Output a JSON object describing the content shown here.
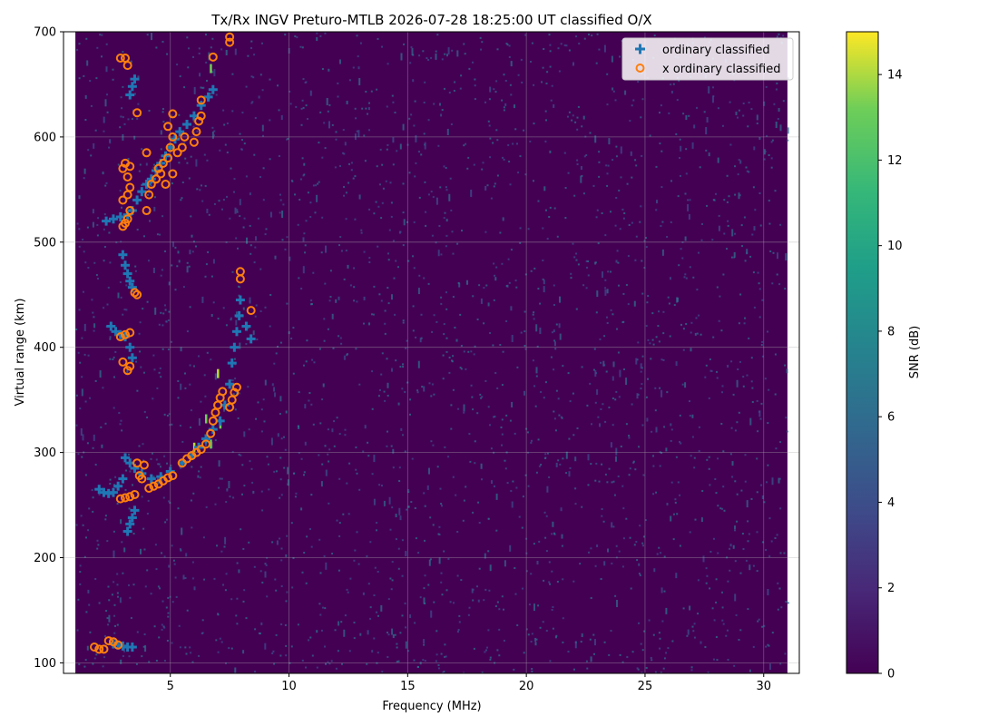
{
  "chart_data": {
    "type": "scatter",
    "title": "Tx/Rx INGV Preturo-MTLB 2026-07-28 18:25:00  UT classified O/X",
    "xlabel": "Frequency (MHz)",
    "ylabel": "Virtual range (km)",
    "xlim": [
      0.5,
      31.5
    ],
    "ylim": [
      90,
      700
    ],
    "x_data_extent": [
      1.0,
      31.0
    ],
    "x_ticks": [
      "5",
      "10",
      "15",
      "20",
      "25",
      "30"
    ],
    "x_tick_values": [
      5,
      10,
      15,
      20,
      25,
      30
    ],
    "y_ticks": [
      "100",
      "200",
      "300",
      "400",
      "500",
      "600",
      "700"
    ],
    "y_tick_values": [
      100,
      200,
      300,
      400,
      500,
      600,
      700
    ],
    "grid": true,
    "legend_position": "top-right",
    "background_color": "#440154",
    "colorbar": {
      "label": "SNR (dB)",
      "range": [
        0,
        15
      ],
      "ticks": [
        "0",
        "2",
        "4",
        "6",
        "8",
        "10",
        "12",
        "14"
      ],
      "tick_values": [
        0,
        2,
        4,
        6,
        8,
        10,
        12,
        14
      ],
      "colormap": "viridis"
    },
    "series": [
      {
        "name": "ordinary classified",
        "marker": "plus",
        "color": "#1f77b4",
        "points": [
          [
            2.0,
            265
          ],
          [
            2.2,
            262
          ],
          [
            2.4,
            261
          ],
          [
            2.6,
            262
          ],
          [
            2.8,
            268
          ],
          [
            3.0,
            275
          ],
          [
            3.1,
            295
          ],
          [
            3.3,
            290
          ],
          [
            3.5,
            285
          ],
          [
            3.8,
            280
          ],
          [
            4.2,
            275
          ],
          [
            4.6,
            277
          ],
          [
            5.0,
            282
          ],
          [
            5.5,
            290
          ],
          [
            5.9,
            297
          ],
          [
            6.2,
            305
          ],
          [
            6.5,
            313
          ],
          [
            6.8,
            322
          ],
          [
            7.1,
            330
          ],
          [
            7.3,
            345
          ],
          [
            7.5,
            365
          ],
          [
            7.6,
            385
          ],
          [
            7.7,
            400
          ],
          [
            7.8,
            415
          ],
          [
            7.9,
            430
          ],
          [
            7.95,
            445
          ],
          [
            8.2,
            420
          ],
          [
            8.4,
            408
          ],
          [
            3.2,
            225
          ],
          [
            3.3,
            232
          ],
          [
            3.4,
            238
          ],
          [
            3.5,
            245
          ],
          [
            2.5,
            420
          ],
          [
            2.7,
            415
          ],
          [
            2.9,
            412
          ],
          [
            3.1,
            410
          ],
          [
            3.3,
            400
          ],
          [
            3.4,
            390
          ],
          [
            3.0,
            488
          ],
          [
            3.1,
            478
          ],
          [
            3.2,
            470
          ],
          [
            3.3,
            463
          ],
          [
            3.4,
            457
          ],
          [
            2.3,
            520
          ],
          [
            2.6,
            522
          ],
          [
            2.9,
            524
          ],
          [
            3.2,
            526
          ],
          [
            3.4,
            530
          ],
          [
            3.6,
            540
          ],
          [
            3.8,
            548
          ],
          [
            4.0,
            555
          ],
          [
            4.2,
            560
          ],
          [
            4.4,
            568
          ],
          [
            4.6,
            575
          ],
          [
            4.8,
            582
          ],
          [
            5.0,
            590
          ],
          [
            5.2,
            598
          ],
          [
            5.4,
            605
          ],
          [
            5.7,
            612
          ],
          [
            6.0,
            620
          ],
          [
            6.3,
            630
          ],
          [
            6.6,
            638
          ],
          [
            6.8,
            645
          ],
          [
            3.3,
            640
          ],
          [
            3.4,
            648
          ],
          [
            3.5,
            655
          ],
          [
            2.6,
            118
          ],
          [
            2.8,
            117
          ],
          [
            3.0,
            116
          ],
          [
            3.2,
            115
          ],
          [
            3.4,
            115
          ]
        ]
      },
      {
        "name": "x ordinary classified",
        "marker": "circle",
        "color": "#ff7f0e",
        "points": [
          [
            2.9,
            256
          ],
          [
            3.1,
            257
          ],
          [
            3.3,
            258
          ],
          [
            3.5,
            260
          ],
          [
            3.7,
            278
          ],
          [
            3.8,
            275
          ],
          [
            3.6,
            290
          ],
          [
            3.9,
            288
          ],
          [
            4.1,
            266
          ],
          [
            4.3,
            268
          ],
          [
            4.5,
            270
          ],
          [
            4.7,
            273
          ],
          [
            4.9,
            276
          ],
          [
            5.1,
            278
          ],
          [
            5.5,
            290
          ],
          [
            5.7,
            294
          ],
          [
            5.9,
            297
          ],
          [
            6.1,
            300
          ],
          [
            6.3,
            303
          ],
          [
            6.5,
            308
          ],
          [
            6.7,
            318
          ],
          [
            6.8,
            330
          ],
          [
            6.9,
            338
          ],
          [
            7.0,
            345
          ],
          [
            7.1,
            352
          ],
          [
            7.2,
            358
          ],
          [
            7.5,
            343
          ],
          [
            7.6,
            350
          ],
          [
            7.7,
            357
          ],
          [
            7.8,
            362
          ],
          [
            7.95,
            465
          ],
          [
            7.95,
            472
          ],
          [
            8.4,
            435
          ],
          [
            3.0,
            386
          ],
          [
            3.2,
            378
          ],
          [
            3.3,
            382
          ],
          [
            2.9,
            410
          ],
          [
            3.1,
            412
          ],
          [
            3.3,
            414
          ],
          [
            3.5,
            452
          ],
          [
            3.6,
            450
          ],
          [
            3.0,
            515
          ],
          [
            3.1,
            518
          ],
          [
            3.2,
            522
          ],
          [
            3.3,
            530
          ],
          [
            3.0,
            540
          ],
          [
            3.2,
            545
          ],
          [
            3.3,
            552
          ],
          [
            3.0,
            570
          ],
          [
            3.1,
            575
          ],
          [
            3.3,
            572
          ],
          [
            3.2,
            562
          ],
          [
            4.0,
            530
          ],
          [
            4.1,
            545
          ],
          [
            4.2,
            555
          ],
          [
            4.4,
            560
          ],
          [
            4.5,
            570
          ],
          [
            4.7,
            575
          ],
          [
            4.9,
            580
          ],
          [
            5.0,
            590
          ],
          [
            5.1,
            600
          ],
          [
            5.3,
            585
          ],
          [
            5.5,
            590
          ],
          [
            5.6,
            600
          ],
          [
            6.0,
            595
          ],
          [
            6.1,
            605
          ],
          [
            6.2,
            615
          ],
          [
            6.3,
            620
          ],
          [
            4.0,
            585
          ],
          [
            4.9,
            610
          ],
          [
            5.1,
            622
          ],
          [
            6.3,
            635
          ],
          [
            3.6,
            623
          ],
          [
            4.4,
            560
          ],
          [
            4.6,
            565
          ],
          [
            4.8,
            555
          ],
          [
            5.1,
            565
          ],
          [
            2.9,
            675
          ],
          [
            3.1,
            675
          ],
          [
            3.2,
            668
          ],
          [
            6.8,
            676
          ],
          [
            7.5,
            690
          ],
          [
            7.5,
            695
          ],
          [
            1.8,
            115
          ],
          [
            2.0,
            113
          ],
          [
            2.2,
            113
          ],
          [
            2.4,
            121
          ],
          [
            2.6,
            120
          ],
          [
            2.8,
            117
          ]
        ]
      }
    ],
    "snr_traces": [
      {
        "x": 6.7,
        "y": 665,
        "snr": 12
      },
      {
        "x": 7.0,
        "y": 375,
        "snr": 13
      },
      {
        "x": 6.5,
        "y": 332,
        "snr": 12
      },
      {
        "x": 7.1,
        "y": 327,
        "snr": 11
      },
      {
        "x": 6.0,
        "y": 305,
        "snr": 13
      },
      {
        "x": 6.7,
        "y": 308,
        "snr": 12
      }
    ]
  }
}
